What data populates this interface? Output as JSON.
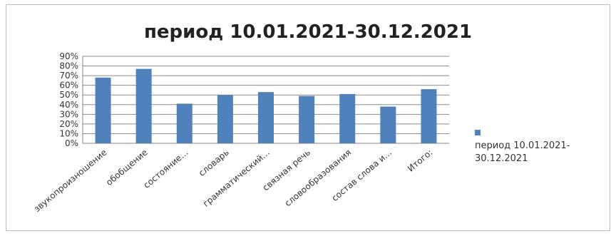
{
  "chart_data": {
    "type": "bar",
    "title": "период 10.01.2021-30.12.2021",
    "categories": [
      "звукопроизношение",
      "обобщение",
      "состояние…",
      "словарь",
      "грамматический…",
      "связная речь",
      "словообразования",
      "состав слова и…",
      "Итого:"
    ],
    "series": [
      {
        "name": "период 10.01.2021-30.12.2021",
        "values": [
          68,
          77,
          41,
          50,
          53,
          49,
          51,
          38,
          56
        ]
      }
    ],
    "yticks": [
      "0%",
      "10%",
      "20%",
      "30%",
      "40%",
      "50%",
      "60%",
      "70%",
      "80%",
      "90%"
    ],
    "ylim": [
      0,
      90
    ],
    "y_unit": "%",
    "grid": true,
    "legend_position": "right",
    "bar_color": "#4f81bd"
  }
}
